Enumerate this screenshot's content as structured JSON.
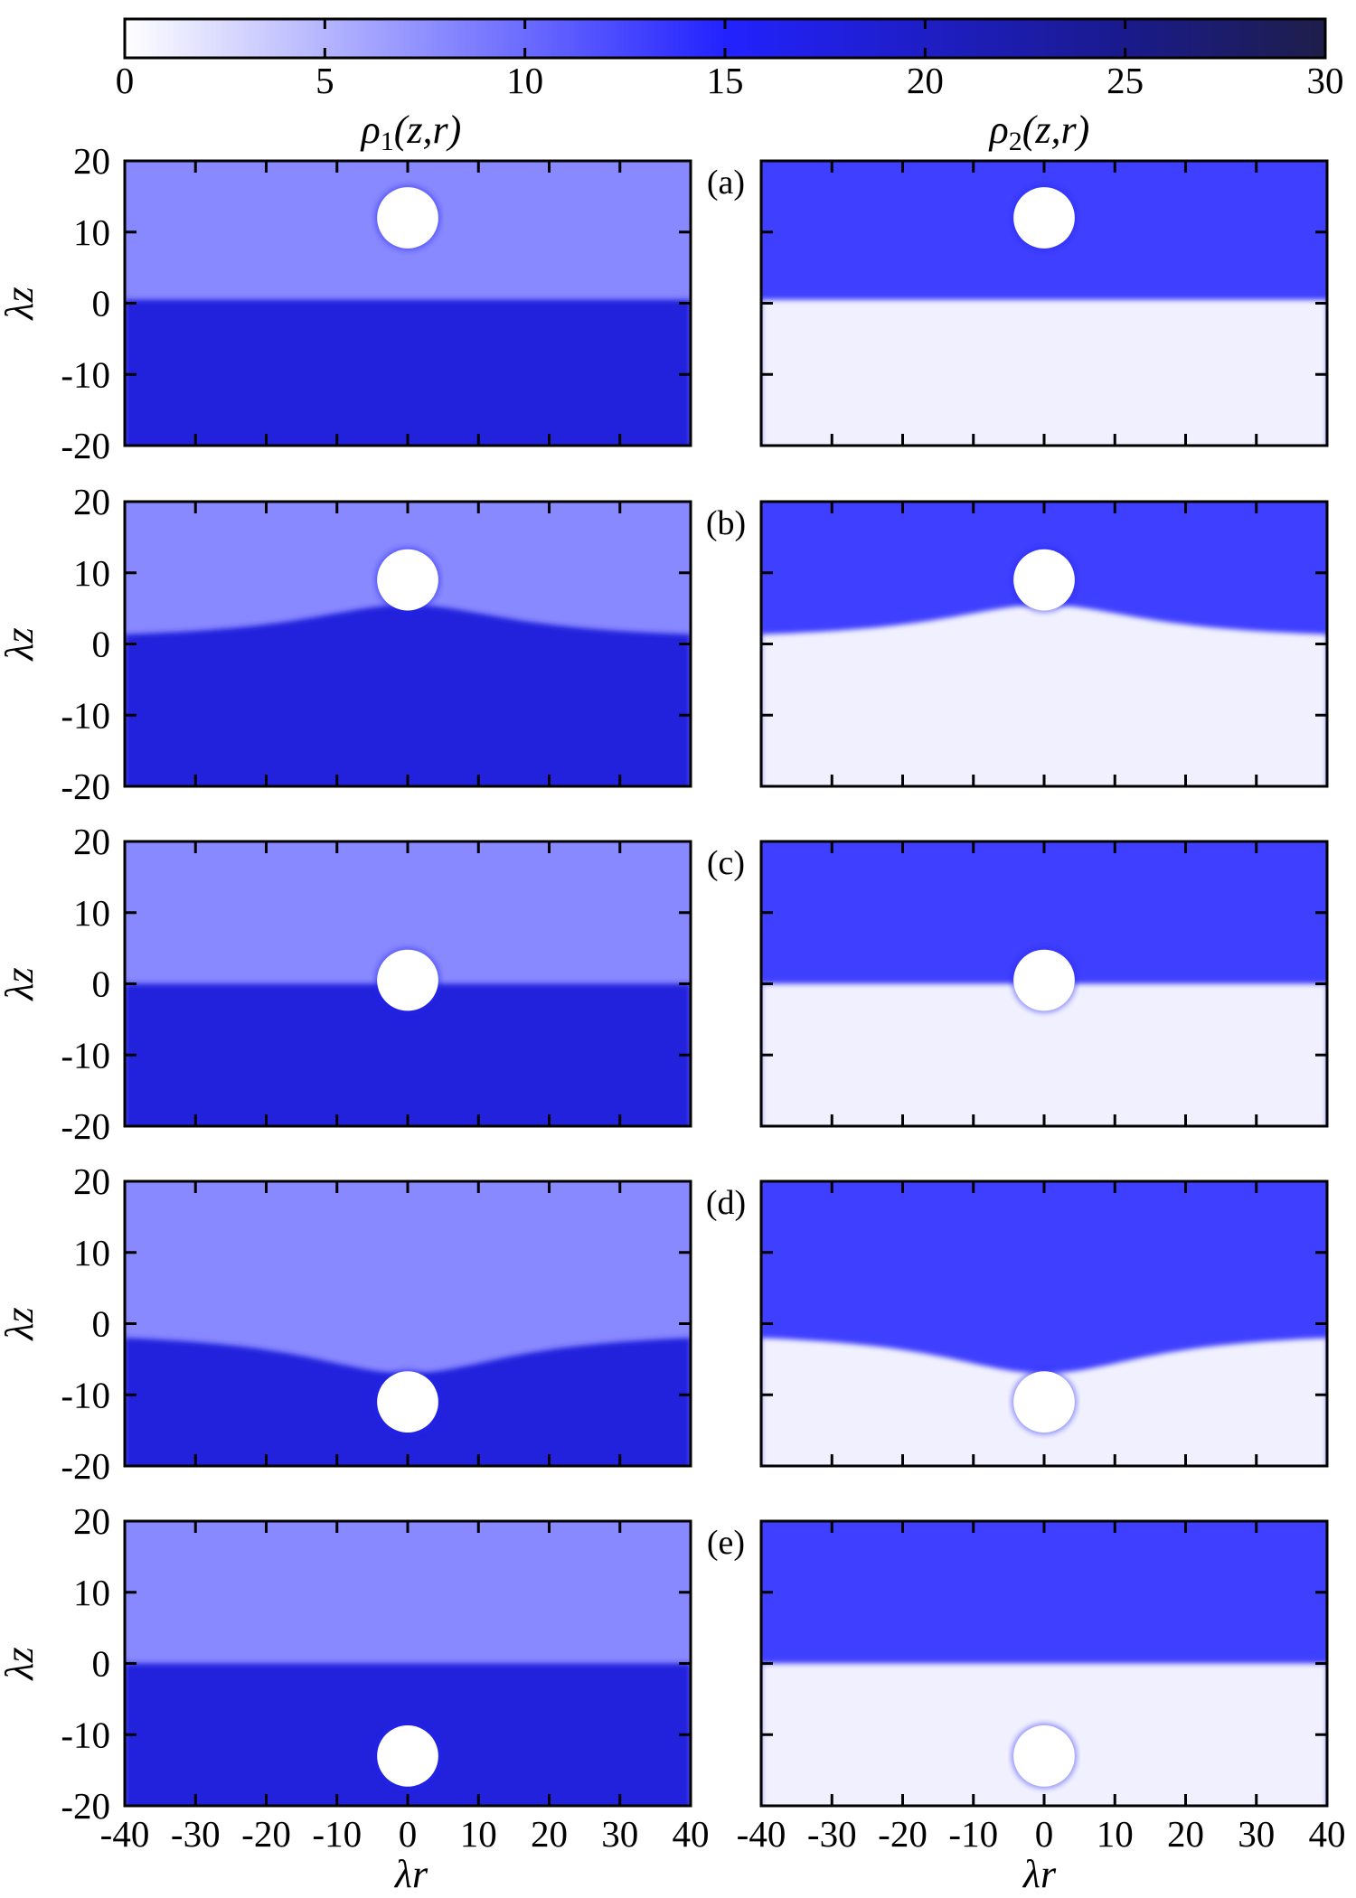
{
  "chart_data": {
    "type": "heatmap",
    "colorbar": {
      "range": [
        0,
        30
      ],
      "ticks": [
        0,
        5,
        10,
        15,
        20,
        25,
        30
      ],
      "colors": [
        "#ffffff",
        "#8888ff",
        "#2222ff",
        "#1a1a8c",
        "#1e1e4a"
      ],
      "color_stops": [
        0,
        8,
        15,
        25,
        30
      ]
    },
    "column_titles": [
      {
        "symbol": "ρ",
        "sub": "1",
        "args": "(z,r)"
      },
      {
        "symbol": "ρ",
        "sub": "2",
        "args": "(z,r)"
      }
    ],
    "xlabel": "λr",
    "ylabel": "λz",
    "xlim": [
      -40,
      40
    ],
    "ylim": [
      -20,
      20
    ],
    "xticks": [
      -40,
      -30,
      -20,
      -10,
      0,
      10,
      20,
      30,
      40
    ],
    "yticks": [
      -20,
      -10,
      0,
      10,
      20
    ],
    "grid": false,
    "panels": [
      {
        "label": "(a)",
        "obstacle_center": [
          0,
          12
        ],
        "obstacle_radius": 4.3,
        "interface_center_z": 0.5,
        "interface_edge_z": 0.5,
        "density_upper": [
          8,
          13
        ],
        "density_lower": [
          18,
          1
        ]
      },
      {
        "label": "(b)",
        "obstacle_center": [
          0,
          9
        ],
        "obstacle_radius": 4.3,
        "interface_center_z": 5.5,
        "interface_edge_z": 0.5,
        "density_upper": [
          8,
          13
        ],
        "density_lower": [
          18,
          1
        ]
      },
      {
        "label": "(c)",
        "obstacle_center": [
          0,
          0.5
        ],
        "obstacle_radius": 4.3,
        "interface_center_z": 0,
        "interface_edge_z": 0,
        "density_upper": [
          8,
          13
        ],
        "density_lower": [
          18,
          1
        ]
      },
      {
        "label": "(d)",
        "obstacle_center": [
          0,
          -11
        ],
        "obstacle_radius": 4.3,
        "interface_center_z": -7,
        "interface_edge_z": -1,
        "density_upper": [
          8,
          13
        ],
        "density_lower": [
          18,
          1
        ]
      },
      {
        "label": "(e)",
        "obstacle_center": [
          0,
          -13
        ],
        "obstacle_radius": 4.3,
        "interface_center_z": 0,
        "interface_edge_z": 0,
        "density_upper": [
          8,
          13
        ],
        "density_lower": [
          18,
          1
        ]
      }
    ]
  }
}
